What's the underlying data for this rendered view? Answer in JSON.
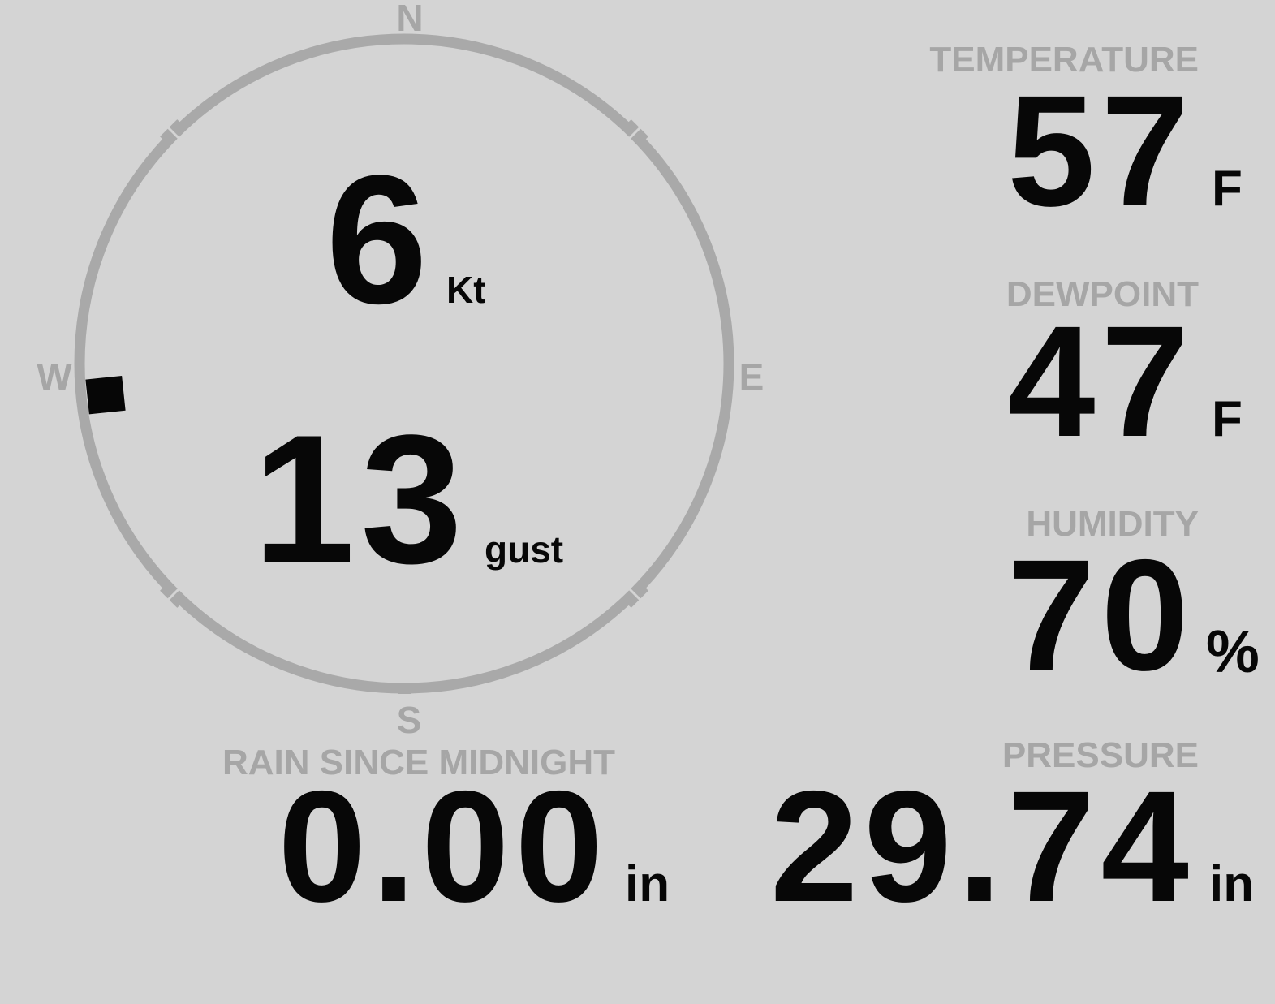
{
  "colors": {
    "background": "#d4d4d4",
    "muted_gray": "#a6a6a6",
    "ring_gray": "#a9a9a9",
    "value_black": "#070707"
  },
  "compass": {
    "cardinals": {
      "north": "N",
      "east": "E",
      "south": "S",
      "west": "W"
    },
    "wind_speed": {
      "value": "6",
      "unit": "Kt"
    },
    "wind_gust": {
      "value": "13",
      "unit": "gust"
    },
    "wind_direction_deg": 264
  },
  "readings": {
    "temperature": {
      "label": "TEMPERATURE",
      "value": "57",
      "unit": "F"
    },
    "dewpoint": {
      "label": "DEWPOINT",
      "value": "47",
      "unit": "F"
    },
    "humidity": {
      "label": "HUMIDITY",
      "value": "70",
      "unit": "%"
    },
    "pressure": {
      "label": "PRESSURE",
      "value": "29.74",
      "unit": "in"
    },
    "rain_since_midnight": {
      "label": "RAIN SINCE MIDNIGHT",
      "value": "0.00",
      "unit": "in"
    }
  }
}
